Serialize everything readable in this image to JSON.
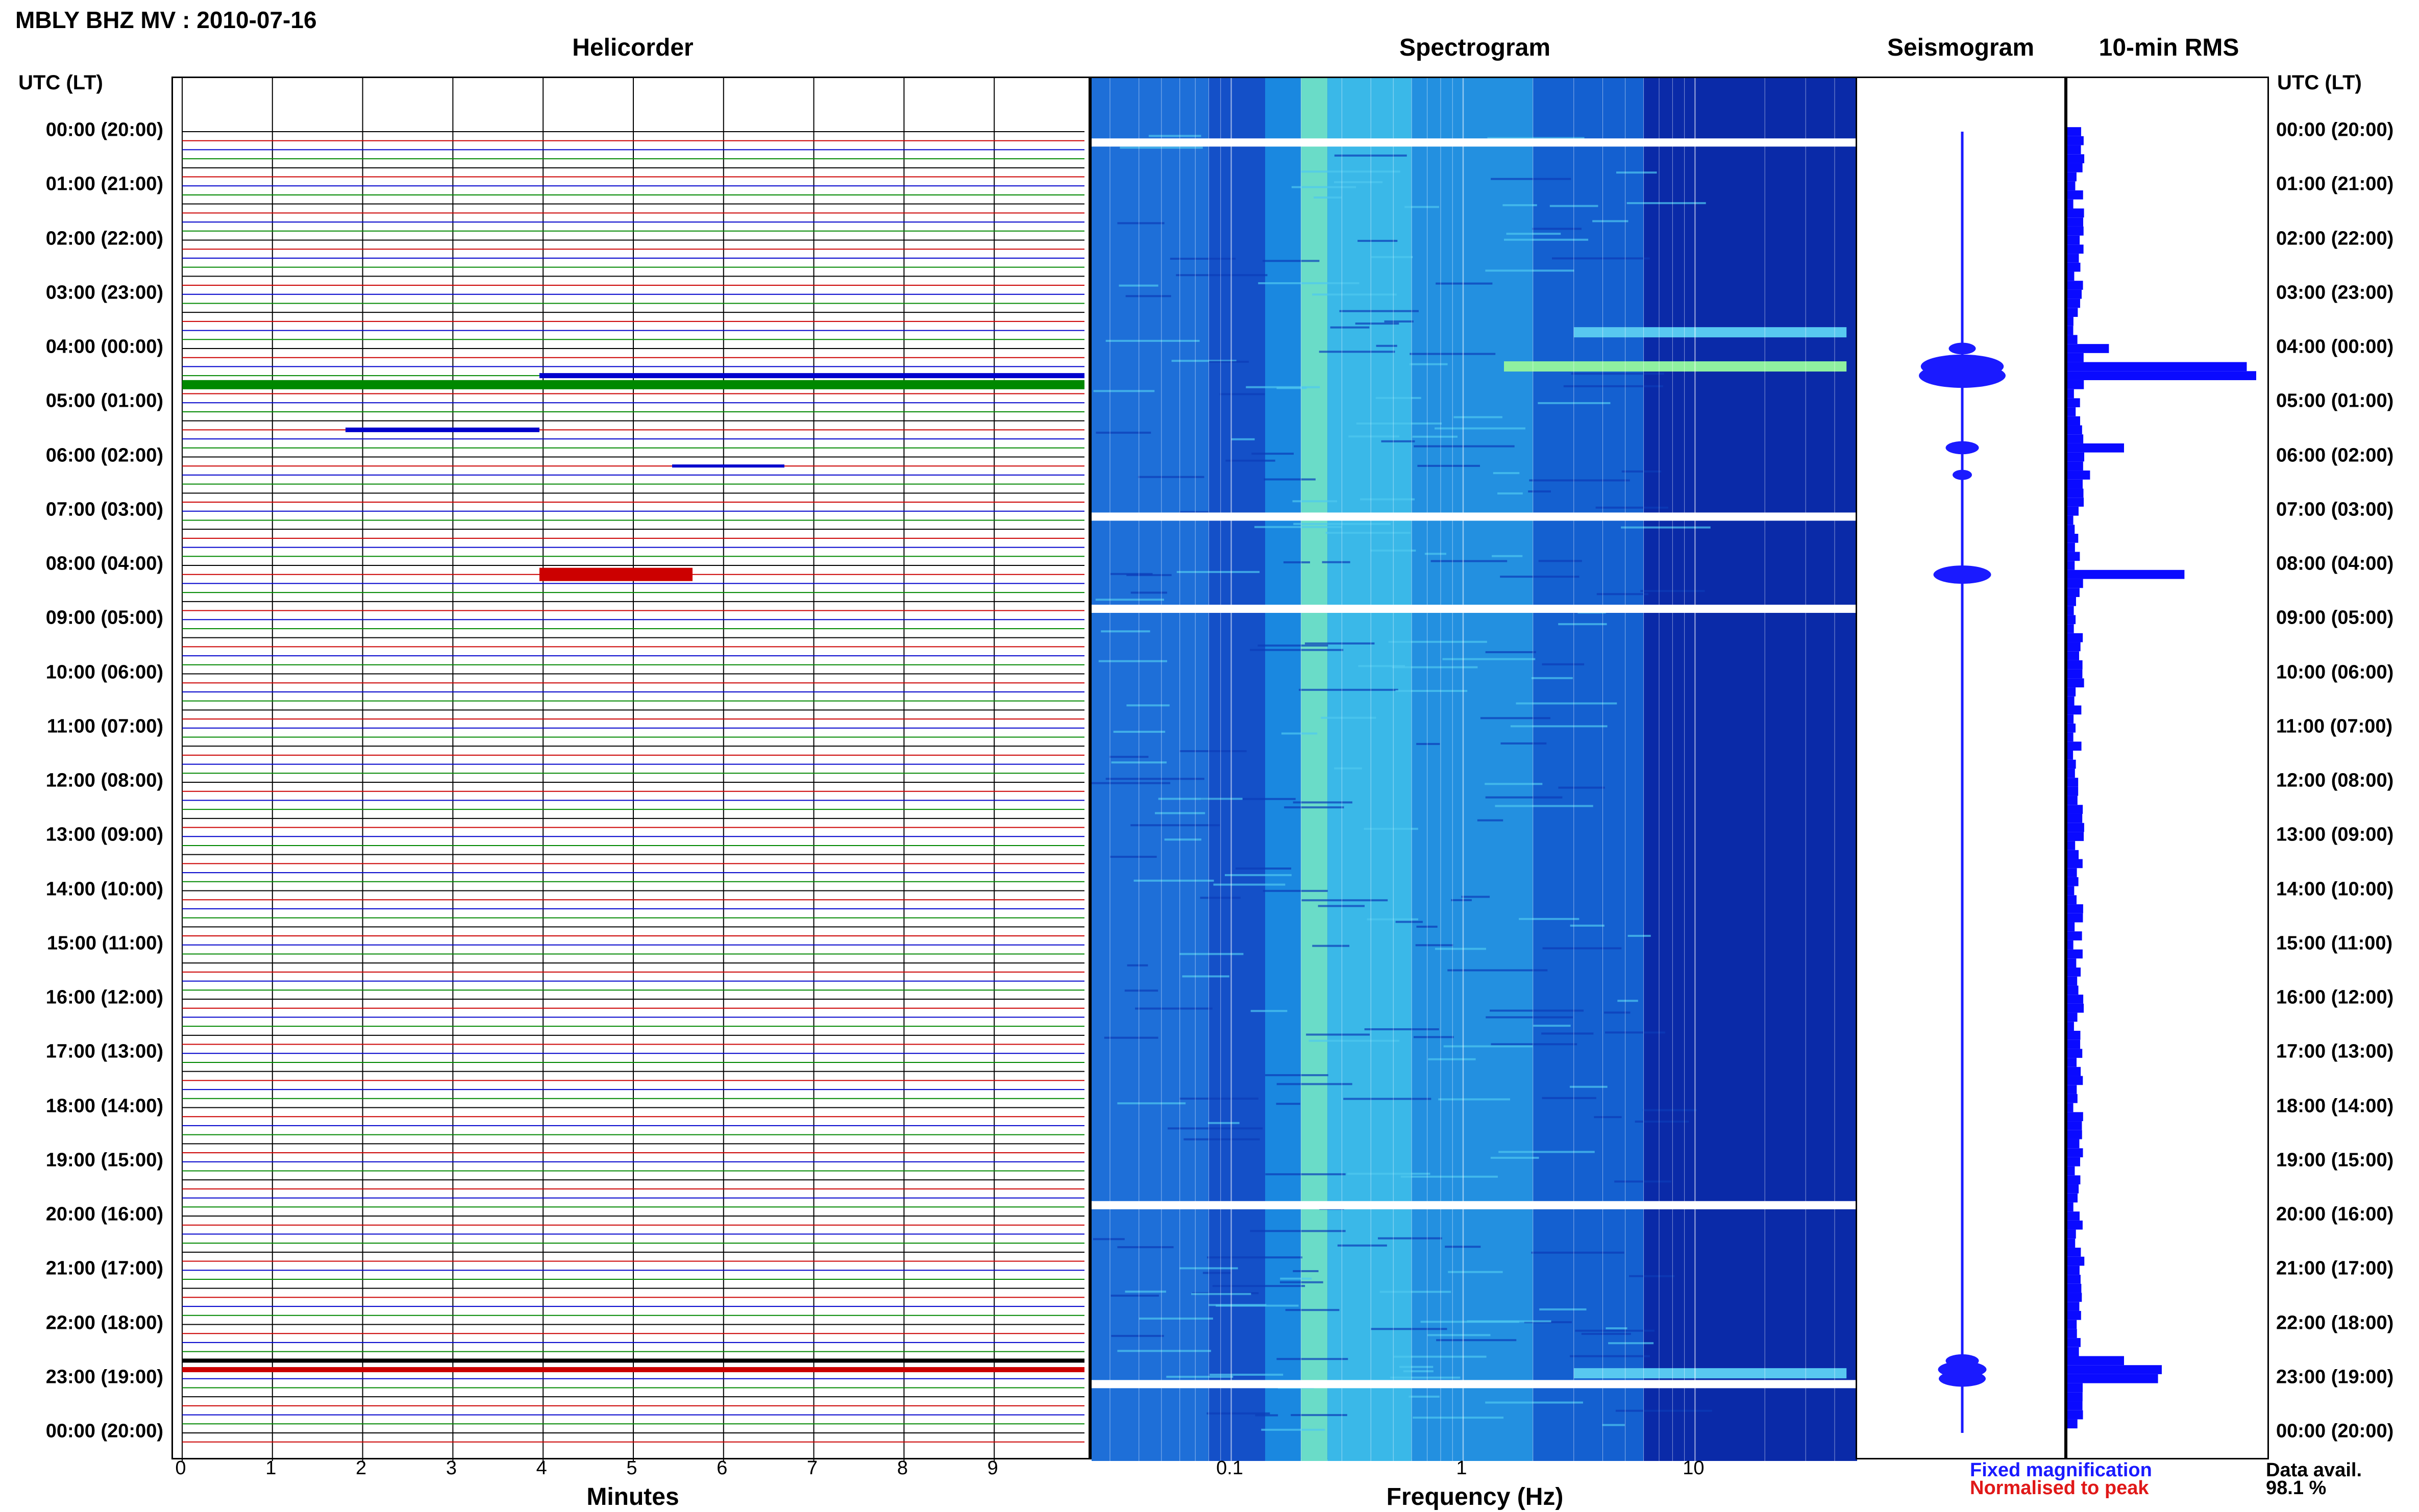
{
  "title": "MBLY BHZ MV : 2010-07-16",
  "panels": {
    "helicorder": "Helicorder",
    "spectrogram": "Spectrogram",
    "seismogram": "Seismogram",
    "rms": "10-min RMS"
  },
  "time_axis_label": "UTC (LT)",
  "time_ticks": [
    "00:00 (20:00)",
    "01:00 (21:00)",
    "02:00 (22:00)",
    "03:00 (23:00)",
    "04:00 (00:00)",
    "05:00 (01:00)",
    "06:00 (02:00)",
    "07:00 (03:00)",
    "08:00 (04:00)",
    "09:00 (05:00)",
    "10:00 (06:00)",
    "11:00 (07:00)",
    "12:00 (08:00)",
    "13:00 (09:00)",
    "14:00 (10:00)",
    "15:00 (11:00)",
    "16:00 (12:00)",
    "17:00 (13:00)",
    "18:00 (14:00)",
    "19:00 (15:00)",
    "20:00 (16:00)",
    "21:00 (17:00)",
    "22:00 (18:00)",
    "23:00 (19:00)",
    "00:00 (20:00)"
  ],
  "helicorder_axis": {
    "label": "Minutes",
    "ticks": [
      "0",
      "1",
      "2",
      "3",
      "4",
      "5",
      "6",
      "7",
      "8",
      "9"
    ]
  },
  "spectrogram_axis": {
    "label": "Frequency (Hz)",
    "ticks": [
      "0.1",
      "1",
      "10"
    ]
  },
  "legend": {
    "fixed": "Fixed magnification",
    "normalised": "Normalised to peak"
  },
  "availability": {
    "label": "Data avail.",
    "value": "98.1 %"
  },
  "colors": {
    "trace_cycle": [
      "#000000",
      "#cc0000",
      "#0000cc",
      "#008800"
    ],
    "seismogram": "#1a1aff",
    "rms": "#0a0aff"
  },
  "chart_data": {
    "type": "bar",
    "title": "10-min RMS",
    "x_unit": "UTC hour",
    "events_relative_amplitude": [
      {
        "hour": 4.0,
        "value": 0.22
      },
      {
        "hour": 4.33,
        "value": 0.95
      },
      {
        "hour": 4.5,
        "value": 1.0
      },
      {
        "hour": 5.83,
        "value": 0.3
      },
      {
        "hour": 6.33,
        "value": 0.12
      },
      {
        "hour": 8.17,
        "value": 0.62
      },
      {
        "hour": 22.67,
        "value": 0.3
      },
      {
        "hour": 22.83,
        "value": 0.5
      },
      {
        "hour": 23.0,
        "value": 0.48
      }
    ],
    "spectrogram_data_gaps_utc_hour": [
      0.2,
      7.1,
      8.8,
      19.8,
      23.1
    ]
  }
}
